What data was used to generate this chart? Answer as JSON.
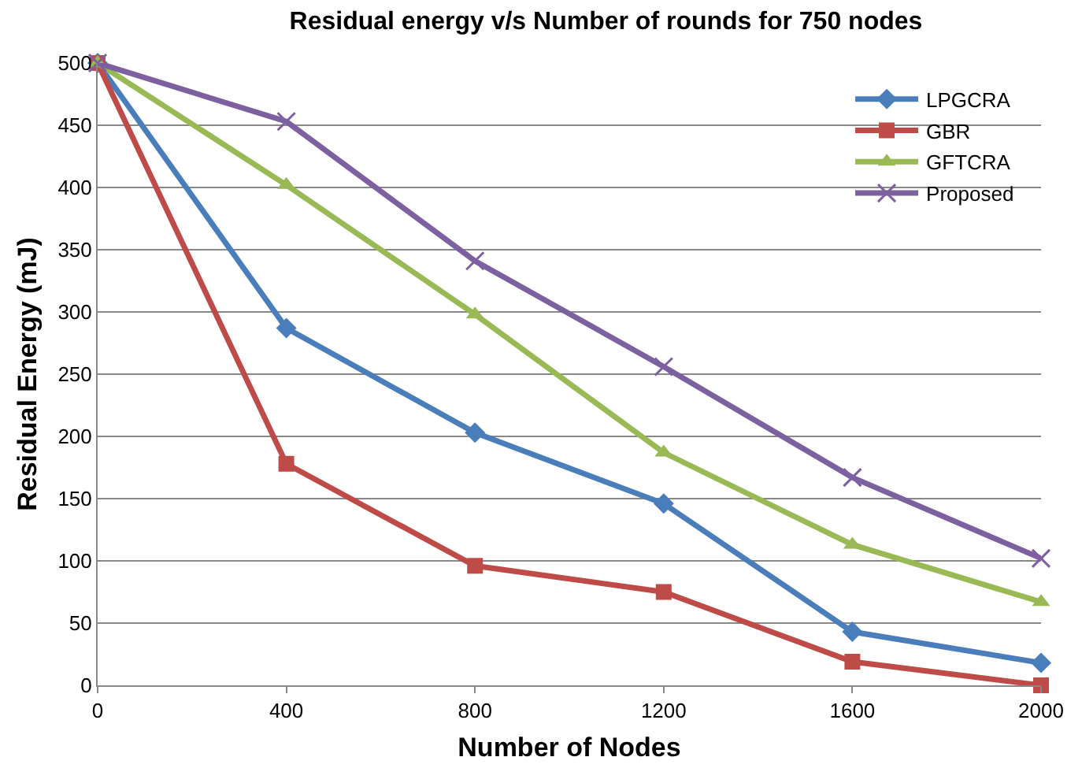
{
  "chart_data": {
    "type": "line",
    "title": "Residual energy v/s Number of rounds for 750 nodes",
    "xlabel": "Number of Nodes",
    "ylabel": "Residual Energy (mJ)",
    "x": [
      0,
      400,
      800,
      1200,
      1600,
      2000
    ],
    "xlim": [
      0,
      2000
    ],
    "xticks": [
      0,
      400,
      800,
      1200,
      1600,
      2000
    ],
    "ylim": [
      0,
      500
    ],
    "yticks": [
      0,
      50,
      100,
      150,
      200,
      250,
      300,
      350,
      400,
      450,
      500
    ],
    "grid": "y",
    "legend": "top right",
    "series": [
      {
        "name": "LPGCRA",
        "color": "#4a7ebb",
        "marker": "diamond",
        "values": [
          500,
          287,
          203,
          146,
          43,
          18
        ]
      },
      {
        "name": "GBR",
        "color": "#be4b48",
        "marker": "square",
        "values": [
          500,
          178,
          96,
          75,
          19,
          0
        ]
      },
      {
        "name": "GFTCRA",
        "color": "#98b954",
        "marker": "triangle",
        "values": [
          500,
          402,
          298,
          187,
          113,
          67
        ]
      },
      {
        "name": "Proposed",
        "color": "#7d60a0",
        "marker": "cross",
        "values": [
          500,
          453,
          341,
          256,
          167,
          102
        ]
      }
    ]
  }
}
